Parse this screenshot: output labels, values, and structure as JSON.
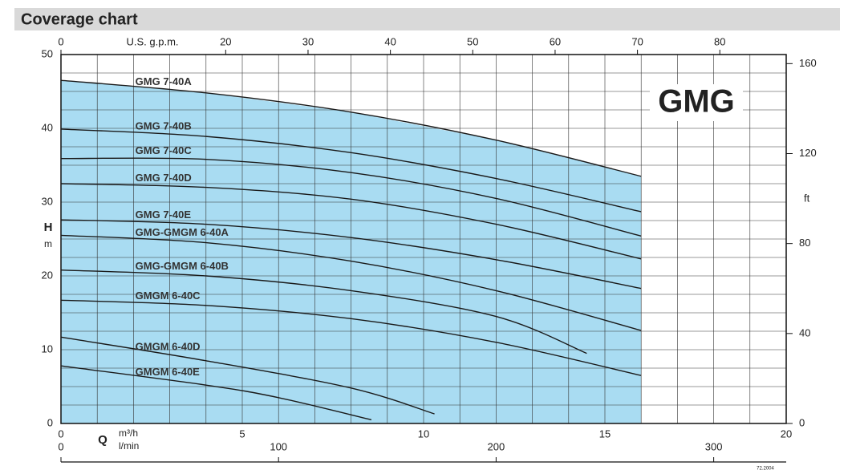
{
  "chart_data": {
    "type": "line",
    "title": "Coverage chart",
    "brand": "GMG",
    "code": "72.2004",
    "x_symbol": "Q",
    "x_unit": "m³/h",
    "y_symbol": "H",
    "y_unit": "m",
    "x2_unit": "U.S. g.p.m.",
    "x3_unit": "l/min",
    "y2_unit": "ft",
    "xlim": [
      0,
      20
    ],
    "xticks": [
      0,
      5,
      10,
      15,
      20
    ],
    "xminor_ticks": [
      1,
      2,
      3,
      4,
      6,
      7,
      8,
      9,
      11,
      12,
      13,
      14,
      16,
      17,
      18,
      19
    ],
    "ylim": [
      0,
      50
    ],
    "yticks": [
      0,
      10,
      20,
      30,
      40,
      50
    ],
    "yminor_ticks": [
      2.5,
      5,
      7.5,
      12.5,
      15,
      17.5,
      22.5,
      25,
      27.5,
      32.5,
      35,
      37.5,
      42.5,
      45,
      47.5
    ],
    "x2lim": [
      0,
      88.06
    ],
    "x2ticks": [
      0,
      20,
      30,
      40,
      50,
      60,
      70,
      80
    ],
    "x3lim": [
      0,
      333.33
    ],
    "x3ticks": [
      0,
      100,
      200,
      300
    ],
    "y2lim": [
      0,
      164.04
    ],
    "y2ticks": [
      0,
      40,
      80,
      120,
      160
    ],
    "grid": true,
    "fill_color": "#a9dcf2",
    "line_color": "#1a1a1a",
    "series": [
      {
        "name": "GMG 7-40A",
        "x": [
          0,
          4,
          8,
          12,
          16
        ],
        "values": [
          46.5,
          44.8,
          42.2,
          38.4,
          33.5
        ]
      },
      {
        "name": "GMG 7-40B",
        "x": [
          0,
          4,
          8,
          12,
          16
        ],
        "values": [
          39.9,
          38.9,
          36.7,
          33.2,
          28.7
        ]
      },
      {
        "name": "GMG 7-40C",
        "x": [
          0,
          4,
          8,
          12,
          16
        ],
        "values": [
          35.9,
          35.8,
          34.0,
          30.5,
          25.4
        ]
      },
      {
        "name": "GMG 7-40D",
        "x": [
          0,
          4,
          8,
          12,
          16
        ],
        "values": [
          32.5,
          32.0,
          30.4,
          27.0,
          22.3
        ]
      },
      {
        "name": "GMG 7-40E",
        "x": [
          0,
          4,
          8,
          12,
          16
        ],
        "values": [
          27.6,
          27.0,
          25.2,
          22.2,
          18.3
        ]
      },
      {
        "name": "GMG-GMGM 6-40A",
        "x": [
          0,
          4,
          8,
          12,
          16
        ],
        "values": [
          25.5,
          24.5,
          22.0,
          18.0,
          12.6
        ]
      },
      {
        "name": "GMG-GMGM 6-40B",
        "x": [
          0,
          4,
          8,
          12,
          14.5
        ],
        "values": [
          20.8,
          20.0,
          18.0,
          14.5,
          9.5
        ]
      },
      {
        "name": "GMGM 6-40C",
        "x": [
          0,
          4,
          8,
          12,
          16
        ],
        "values": [
          16.7,
          16.0,
          14.2,
          11.0,
          6.5
        ]
      },
      {
        "name": "GMGM 6-40D",
        "x": [
          0,
          4,
          8,
          10.3
        ],
        "values": [
          11.7,
          8.5,
          4.8,
          1.3
        ]
      },
      {
        "name": "GMGM 6-40E",
        "x": [
          0,
          4,
          6,
          8.56
        ],
        "values": [
          7.8,
          5.2,
          3.5,
          0.5
        ]
      }
    ]
  }
}
